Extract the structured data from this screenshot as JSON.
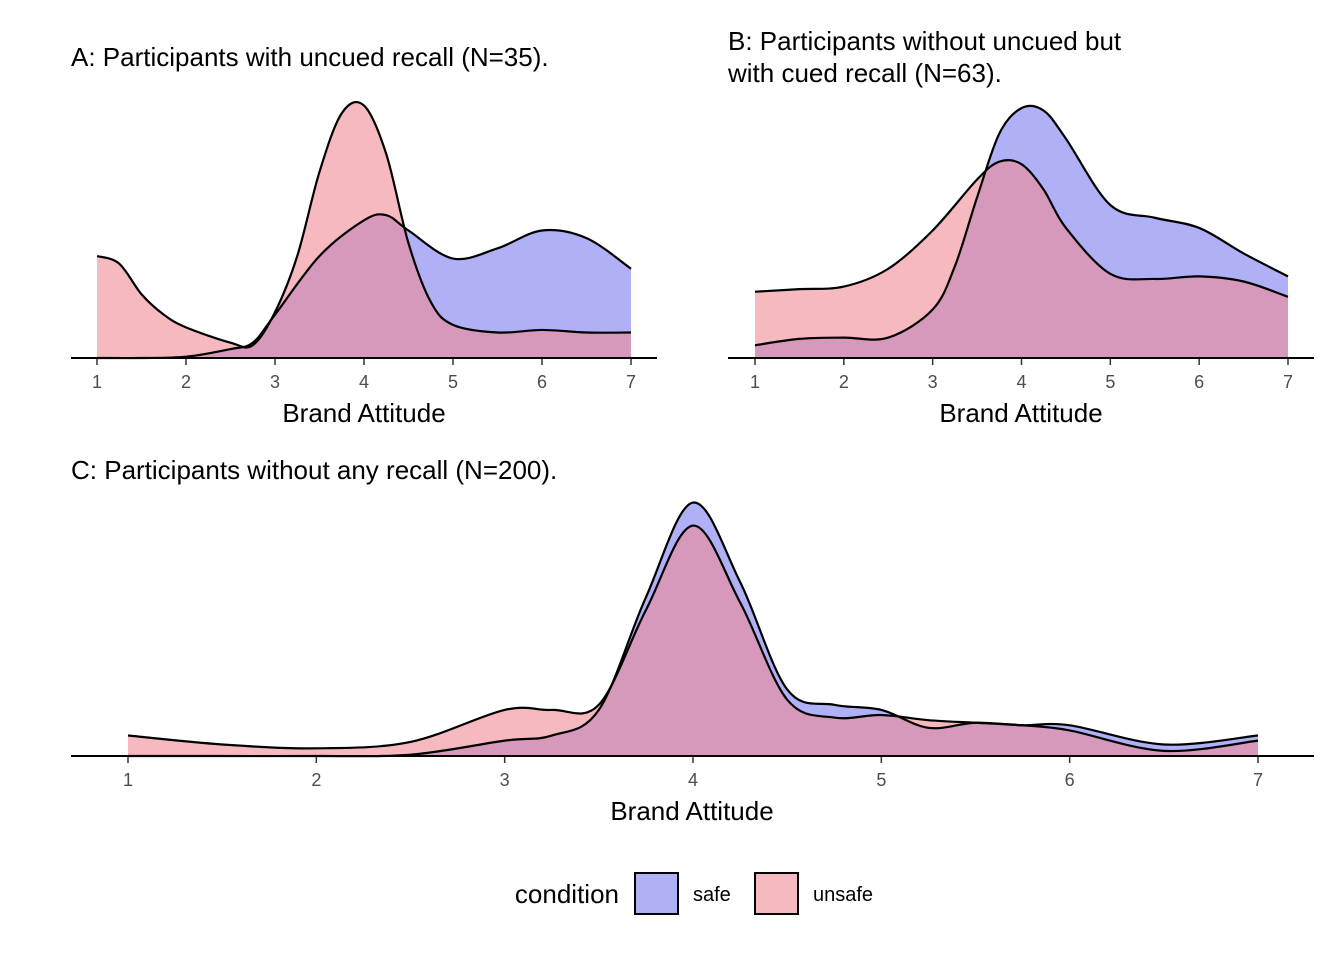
{
  "legend": {
    "title": "condition",
    "items": [
      {
        "label": "safe",
        "color": "#7b7bf0"
      },
      {
        "label": "unsafe",
        "color": "#f08a94"
      }
    ]
  },
  "chart_data": [
    {
      "id": "A",
      "type": "area",
      "title_lines": [
        "A: Participants with uncued recall (N=35)."
      ],
      "xlabel": "Brand Attitude",
      "ylabel": "",
      "xlim": [
        1,
        7
      ],
      "ylim": [
        0,
        1
      ],
      "x_ticks": [
        1,
        2,
        3,
        4,
        5,
        6,
        7
      ],
      "series": [
        {
          "name": "safe",
          "x": [
            1,
            1.5,
            2,
            2.5,
            2.75,
            3,
            3.5,
            4,
            4.25,
            4.5,
            5,
            5.5,
            6,
            6.5,
            7
          ],
          "values": [
            0,
            0,
            0.005,
            0.035,
            0.06,
            0.17,
            0.4,
            0.54,
            0.56,
            0.5,
            0.39,
            0.43,
            0.5,
            0.47,
            0.35
          ]
        },
        {
          "name": "unsafe",
          "x": [
            1,
            1.25,
            1.5,
            1.75,
            2,
            2.5,
            2.75,
            3,
            3.25,
            3.5,
            3.75,
            4,
            4.25,
            4.5,
            4.75,
            5,
            5.5,
            6,
            6.5,
            7
          ],
          "values": [
            0.4,
            0.37,
            0.25,
            0.17,
            0.12,
            0.06,
            0.05,
            0.18,
            0.4,
            0.73,
            0.96,
            0.99,
            0.8,
            0.45,
            0.22,
            0.13,
            0.1,
            0.11,
            0.1,
            0.1
          ]
        }
      ]
    },
    {
      "id": "B",
      "type": "area",
      "title_lines": [
        "B: Participants without uncued but",
        "with cued recall (N=63)."
      ],
      "xlabel": "Brand Attitude",
      "ylabel": "",
      "xlim": [
        1,
        7
      ],
      "ylim": [
        0,
        1
      ],
      "x_ticks": [
        1,
        2,
        3,
        4,
        5,
        6,
        7
      ],
      "series": [
        {
          "name": "safe",
          "x": [
            1,
            1.5,
            2,
            2.5,
            3,
            3.25,
            3.5,
            3.75,
            4,
            4.25,
            4.5,
            5,
            5.5,
            6,
            6.5,
            7
          ],
          "values": [
            0.05,
            0.075,
            0.08,
            0.08,
            0.19,
            0.36,
            0.63,
            0.88,
            0.98,
            0.97,
            0.86,
            0.6,
            0.55,
            0.51,
            0.41,
            0.32
          ]
        },
        {
          "name": "unsafe",
          "x": [
            1,
            1.5,
            2,
            2.5,
            3,
            3.5,
            3.75,
            4,
            4.25,
            4.5,
            5,
            5.5,
            6,
            6.5,
            7
          ],
          "values": [
            0.26,
            0.27,
            0.28,
            0.35,
            0.5,
            0.7,
            0.77,
            0.76,
            0.66,
            0.51,
            0.33,
            0.31,
            0.32,
            0.3,
            0.24
          ]
        }
      ]
    },
    {
      "id": "C",
      "type": "area",
      "title_lines": [
        "C: Participants without any recall (N=200)."
      ],
      "xlabel": "Brand Attitude",
      "ylabel": "",
      "xlim": [
        1,
        7
      ],
      "ylim": [
        0,
        1
      ],
      "x_ticks": [
        1,
        2,
        3,
        4,
        5,
        6,
        7
      ],
      "series": [
        {
          "name": "safe",
          "x": [
            1,
            1.5,
            2,
            2.5,
            3,
            3.25,
            3.5,
            3.75,
            4,
            4.25,
            4.5,
            4.75,
            5,
            5.25,
            5.5,
            5.75,
            6,
            6.5,
            7
          ],
          "values": [
            0,
            0,
            0,
            0.005,
            0.06,
            0.08,
            0.18,
            0.62,
            0.99,
            0.68,
            0.26,
            0.2,
            0.18,
            0.11,
            0.13,
            0.12,
            0.12,
            0.045,
            0.08
          ]
        },
        {
          "name": "unsafe",
          "x": [
            1,
            1.5,
            2,
            2.5,
            3,
            3.25,
            3.5,
            3.75,
            4,
            4.25,
            4.5,
            4.75,
            5,
            5.25,
            5.5,
            5.75,
            6,
            6.5,
            7
          ],
          "values": [
            0.08,
            0.045,
            0.03,
            0.055,
            0.18,
            0.18,
            0.2,
            0.57,
            0.9,
            0.6,
            0.22,
            0.15,
            0.16,
            0.14,
            0.13,
            0.12,
            0.1,
            0.02,
            0.06
          ]
        }
      ]
    }
  ]
}
